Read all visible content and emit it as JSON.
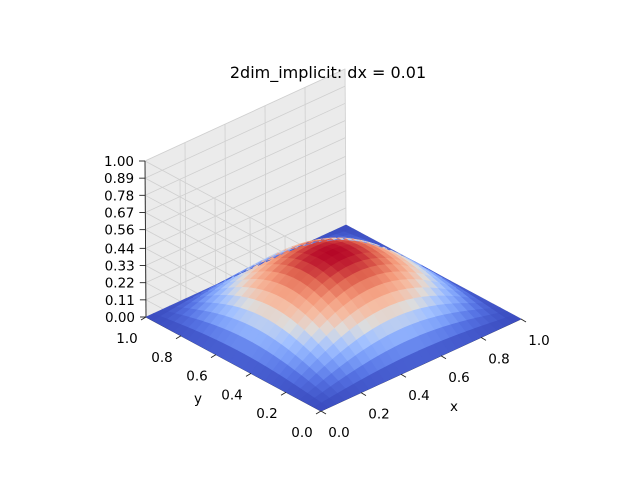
{
  "chart_data": {
    "type": "surface",
    "title": "2dim_implicit: dx = 0.01",
    "xlabel": "x",
    "ylabel": "y",
    "zlabel": "",
    "xlim": [
      0.0,
      1.0
    ],
    "ylim": [
      0.0,
      1.0
    ],
    "zlim": [
      0.0,
      1.0
    ],
    "x_ticks": [
      "0.0",
      "0.2",
      "0.4",
      "0.6",
      "0.8",
      "1.0"
    ],
    "y_ticks": [
      "0.0",
      "0.2",
      "0.4",
      "0.6",
      "0.8",
      "1.0"
    ],
    "z_ticks": [
      "0.00",
      "0.11",
      "0.22",
      "0.33",
      "0.44",
      "0.56",
      "0.67",
      "0.78",
      "0.89",
      "1.00"
    ],
    "colormap": "coolwarm",
    "grid": true,
    "view": {
      "elevation_deg": 30,
      "azimuth_deg": -135
    },
    "surface": {
      "function": "u(x,y) = sin(pi*x) * sin(pi*y) * amplitude",
      "amplitude": 0.42,
      "grid_points_per_axis": 26
    }
  }
}
